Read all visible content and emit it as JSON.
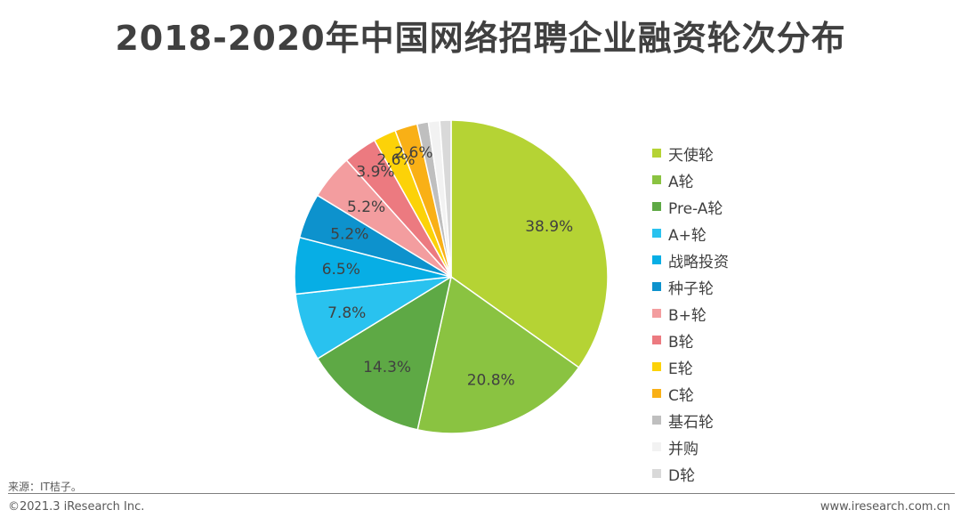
{
  "title": "2018-2020年中国网络招聘企业融资轮次分布",
  "chart_data": {
    "type": "pie",
    "title": "2018-2020年中国网络招聘企业融资轮次分布",
    "legend_position": "right",
    "slices": [
      {
        "label": "天使轮",
        "value": 38.9,
        "value_label": "38.9%",
        "color": "#b5d334"
      },
      {
        "label": "A轮",
        "value": 20.8,
        "value_label": "20.8%",
        "color": "#8ac341"
      },
      {
        "label": "Pre-A轮",
        "value": 14.3,
        "value_label": "14.3%",
        "color": "#5ea945"
      },
      {
        "label": "A+轮",
        "value": 7.8,
        "value_label": "7.8%",
        "color": "#29c2ef"
      },
      {
        "label": "战略投资",
        "value": 6.5,
        "value_label": "6.5%",
        "color": "#07aee5"
      },
      {
        "label": "种子轮",
        "value": 5.2,
        "value_label": "5.2%",
        "color": "#0d92cd"
      },
      {
        "label": "B+轮",
        "value": 5.2,
        "value_label": "5.2%",
        "color": "#f39d9f"
      },
      {
        "label": "B轮",
        "value": 3.9,
        "value_label": "3.9%",
        "color": "#ec7a80"
      },
      {
        "label": "E轮",
        "value": 2.6,
        "value_label": "2.6%",
        "color": "#fcd208"
      },
      {
        "label": "C轮",
        "value": 2.6,
        "value_label": "2.6%",
        "color": "#f9b016"
      },
      {
        "label": "基石轮",
        "value": 1.3,
        "value_label": "",
        "color": "#bfbfbf"
      },
      {
        "label": "并购",
        "value": 1.3,
        "value_label": "",
        "color": "#f2f2f2"
      },
      {
        "label": "D轮",
        "value": 1.3,
        "value_label": "",
        "color": "#d9d9d9"
      }
    ]
  },
  "footer": {
    "source": "来源：IT桔子。",
    "copyright": "©2021.3 iResearch Inc.",
    "website": "www.iresearch.com.cn"
  }
}
